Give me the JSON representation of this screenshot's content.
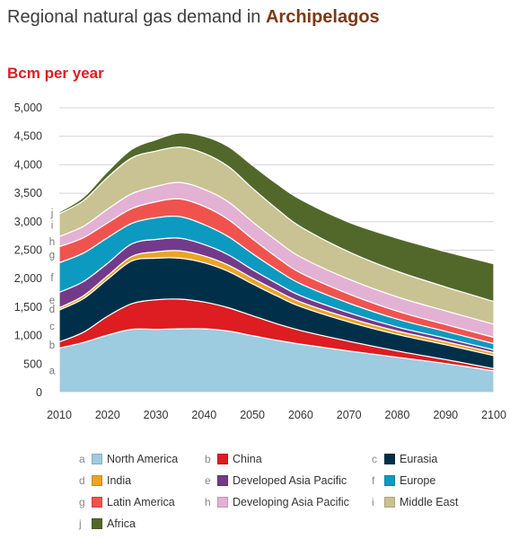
{
  "title_prefix": "Regional natural gas demand in ",
  "title_highlight": "Archipelagos",
  "colors": {
    "title_highlight": "#7a3a1a",
    "unit": "#dd1d21"
  },
  "chart_data": {
    "type": "area",
    "stacked": true,
    "ylabel": "Bcm per year",
    "xlim": [
      2010,
      2100
    ],
    "ylim": [
      0,
      5000
    ],
    "x_ticks": [
      2010,
      2020,
      2030,
      2040,
      2050,
      2060,
      2070,
      2080,
      2090,
      2100
    ],
    "y_ticks": [
      0,
      500,
      1000,
      1500,
      2000,
      2500,
      3000,
      3500,
      4000,
      4500,
      5000
    ],
    "y_tick_labels": [
      "0",
      "500",
      "1,000",
      "1,500",
      "2,000",
      "2,500",
      "3,000",
      "3,500",
      "4,000",
      "4,500",
      "5,000"
    ],
    "x": [
      2010,
      2015,
      2020,
      2025,
      2030,
      2035,
      2040,
      2045,
      2050,
      2055,
      2060,
      2070,
      2080,
      2090,
      2100
    ],
    "series": [
      {
        "letter": "a",
        "name": "North America",
        "color": "#9dcbdf",
        "values": [
          780,
          880,
          1010,
          1110,
          1110,
          1120,
          1120,
          1080,
          1000,
          920,
          850,
          730,
          620,
          510,
          380
        ]
      },
      {
        "letter": "b",
        "name": "China",
        "color": "#dd1d21",
        "values": [
          110,
          180,
          330,
          450,
          520,
          520,
          470,
          410,
          350,
          290,
          240,
          170,
          110,
          70,
          40
        ]
      },
      {
        "letter": "c",
        "name": "Eurasia",
        "color": "#003049",
        "values": [
          560,
          590,
          650,
          750,
          730,
          720,
          690,
          640,
          560,
          490,
          420,
          340,
          290,
          260,
          230
        ]
      },
      {
        "letter": "d",
        "name": "India",
        "color": "#eba524",
        "values": [
          40,
          50,
          60,
          80,
          110,
          130,
          120,
          110,
          100,
          90,
          80,
          70,
          60,
          55,
          50
        ]
      },
      {
        "letter": "e",
        "name": "Developed Asia Pacific",
        "color": "#743a8a",
        "values": [
          270,
          250,
          220,
          220,
          220,
          220,
          200,
          180,
          150,
          130,
          110,
          90,
          70,
          60,
          50
        ]
      },
      {
        "letter": "f",
        "name": "Europe",
        "color": "#0d9ac0",
        "values": [
          520,
          500,
          450,
          360,
          380,
          380,
          350,
          320,
          280,
          240,
          210,
          170,
          140,
          120,
          110
        ]
      },
      {
        "letter": "g",
        "name": "Latin America",
        "color": "#f0534e",
        "values": [
          280,
          270,
          260,
          260,
          280,
          310,
          320,
          300,
          260,
          220,
          190,
          160,
          140,
          120,
          110
        ]
      },
      {
        "letter": "h",
        "name": "Developing Asia Pacific",
        "color": "#e3b1d3",
        "values": [
          180,
          200,
          240,
          260,
          270,
          290,
          300,
          310,
          300,
          290,
          280,
          260,
          250,
          240,
          230
        ]
      },
      {
        "letter": "i",
        "name": "Middle East",
        "color": "#c9c292",
        "values": [
          400,
          450,
          560,
          630,
          620,
          620,
          630,
          620,
          590,
          560,
          530,
          480,
          450,
          420,
          400
        ]
      },
      {
        "letter": "j",
        "name": "Africa",
        "color": "#52682b",
        "values": [
          30,
          60,
          100,
          150,
          200,
          250,
          300,
          350,
          400,
          440,
          480,
          520,
          580,
          620,
          660
        ]
      }
    ]
  }
}
